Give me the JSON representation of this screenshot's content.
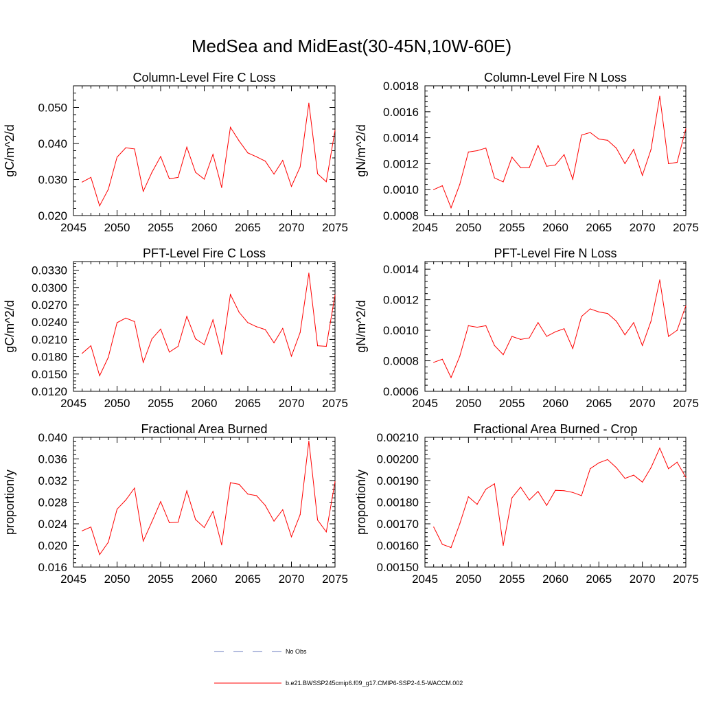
{
  "title": "MedSea and MidEast(30-45N,10W-60E)",
  "colors": {
    "series": "#ff0000",
    "obs": "#6a7bbf",
    "axis": "#000000"
  },
  "legend": {
    "obs_label": "No Obs",
    "series_label": "b.e21.BWSSP245cmip6.f09_g17.CMIP6-SSP2-4.5-WACCM.002"
  },
  "chart_data": [
    {
      "type": "line",
      "title": "Column-Level Fire C Loss",
      "ylabel": "gC/m^2/d",
      "xlim": [
        2045,
        2075
      ],
      "ylim": [
        0.02,
        0.056
      ],
      "xticks": [
        2045,
        2050,
        2055,
        2060,
        2065,
        2070,
        2075
      ],
      "xtick_labels": [
        "2045",
        "2050",
        "2055",
        "2060",
        "2065",
        "2070",
        "2075"
      ],
      "yticks": [
        0.02,
        0.03,
        0.04,
        0.05
      ],
      "ytick_labels": [
        "0.020",
        "0.030",
        "0.040",
        "0.050"
      ],
      "x": [
        2046,
        2047,
        2048,
        2049,
        2050,
        2051,
        2052,
        2053,
        2054,
        2055,
        2056,
        2057,
        2058,
        2059,
        2060,
        2061,
        2062,
        2063,
        2064,
        2065,
        2066,
        2067,
        2068,
        2069,
        2070,
        2071,
        2072,
        2073,
        2074,
        2075
      ],
      "values": [
        0.0293,
        0.0306,
        0.0227,
        0.0273,
        0.0362,
        0.0388,
        0.0385,
        0.0267,
        0.032,
        0.0364,
        0.0302,
        0.0306,
        0.039,
        0.032,
        0.0301,
        0.037,
        0.0278,
        0.0445,
        0.0407,
        0.0374,
        0.0363,
        0.0351,
        0.0315,
        0.0353,
        0.0281,
        0.0335,
        0.0512,
        0.0316,
        0.0294,
        0.0437
      ]
    },
    {
      "type": "line",
      "title": "Column-Level Fire N Loss",
      "ylabel": "gN/m^2/d",
      "xlim": [
        2045,
        2075
      ],
      "ylim": [
        0.0008,
        0.0018
      ],
      "xticks": [
        2045,
        2050,
        2055,
        2060,
        2065,
        2070,
        2075
      ],
      "xtick_labels": [
        "2045",
        "2050",
        "2055",
        "2060",
        "2065",
        "2070",
        "2075"
      ],
      "yticks": [
        0.0008,
        0.001,
        0.0012,
        0.0014,
        0.0016,
        0.0018
      ],
      "ytick_labels": [
        "0.0008",
        "0.0010",
        "0.0012",
        "0.0014",
        "0.0016",
        "0.0018"
      ],
      "x": [
        2046,
        2047,
        2048,
        2049,
        2050,
        2051,
        2052,
        2053,
        2054,
        2055,
        2056,
        2057,
        2058,
        2059,
        2060,
        2061,
        2062,
        2063,
        2064,
        2065,
        2066,
        2067,
        2068,
        2069,
        2070,
        2071,
        2072,
        2073,
        2074,
        2075
      ],
      "values": [
        0.001,
        0.00103,
        0.00086,
        0.00104,
        0.00129,
        0.0013,
        0.00132,
        0.00109,
        0.00106,
        0.00125,
        0.00117,
        0.00117,
        0.00134,
        0.00118,
        0.00119,
        0.00127,
        0.00108,
        0.00142,
        0.00144,
        0.00139,
        0.00138,
        0.00132,
        0.0012,
        0.00131,
        0.00111,
        0.00131,
        0.00172,
        0.0012,
        0.00121,
        0.00147
      ]
    },
    {
      "type": "line",
      "title": "PFT-Level Fire C Loss",
      "ylabel": "gC/m^2/d",
      "xlim": [
        2045,
        2075
      ],
      "ylim": [
        0.012,
        0.0345
      ],
      "xticks": [
        2045,
        2050,
        2055,
        2060,
        2065,
        2070,
        2075
      ],
      "xtick_labels": [
        "2045",
        "2050",
        "2055",
        "2060",
        "2065",
        "2070",
        "2075"
      ],
      "yticks": [
        0.012,
        0.015,
        0.018,
        0.021,
        0.024,
        0.027,
        0.03,
        0.033
      ],
      "ytick_labels": [
        "0.0120",
        "0.0150",
        "0.0180",
        "0.0210",
        "0.0240",
        "0.0270",
        "0.0300",
        "0.0330"
      ],
      "x": [
        2046,
        2047,
        2048,
        2049,
        2050,
        2051,
        2052,
        2053,
        2054,
        2055,
        2056,
        2057,
        2058,
        2059,
        2060,
        2061,
        2062,
        2063,
        2064,
        2065,
        2066,
        2067,
        2068,
        2069,
        2070,
        2071,
        2072,
        2073,
        2074,
        2075
      ],
      "values": [
        0.0186,
        0.0199,
        0.0147,
        0.0179,
        0.0239,
        0.0247,
        0.0241,
        0.017,
        0.0211,
        0.0228,
        0.0188,
        0.0198,
        0.025,
        0.0211,
        0.0201,
        0.0244,
        0.0184,
        0.0288,
        0.0257,
        0.0239,
        0.0232,
        0.0227,
        0.0204,
        0.0229,
        0.0181,
        0.0222,
        0.0325,
        0.0199,
        0.0198,
        0.0287
      ]
    },
    {
      "type": "line",
      "title": "PFT-Level Fire N Loss",
      "ylabel": "gN/m^2/d",
      "xlim": [
        2045,
        2075
      ],
      "ylim": [
        0.0006,
        0.00145
      ],
      "xticks": [
        2045,
        2050,
        2055,
        2060,
        2065,
        2070,
        2075
      ],
      "xtick_labels": [
        "2045",
        "2050",
        "2055",
        "2060",
        "2065",
        "2070",
        "2075"
      ],
      "yticks": [
        0.0006,
        0.0008,
        0.001,
        0.0012,
        0.0014
      ],
      "ytick_labels": [
        "0.0006",
        "0.0008",
        "0.0010",
        "0.0012",
        "0.0014"
      ],
      "x": [
        2046,
        2047,
        2048,
        2049,
        2050,
        2051,
        2052,
        2053,
        2054,
        2055,
        2056,
        2057,
        2058,
        2059,
        2060,
        2061,
        2062,
        2063,
        2064,
        2065,
        2066,
        2067,
        2068,
        2069,
        2070,
        2071,
        2072,
        2073,
        2074,
        2075
      ],
      "values": [
        0.00079,
        0.00081,
        0.00069,
        0.00083,
        0.00103,
        0.00102,
        0.00103,
        0.0009,
        0.00084,
        0.00096,
        0.00094,
        0.00095,
        0.00105,
        0.00096,
        0.00099,
        0.00101,
        0.00088,
        0.00109,
        0.00114,
        0.00112,
        0.00111,
        0.00106,
        0.00097,
        0.00105,
        0.0009,
        0.00106,
        0.00133,
        0.00096,
        0.001,
        0.00116
      ]
    },
    {
      "type": "line",
      "title": "Fractional Area Burned",
      "ylabel": "proportion/y",
      "xlim": [
        2045,
        2075
      ],
      "ylim": [
        0.016,
        0.04
      ],
      "xticks": [
        2045,
        2050,
        2055,
        2060,
        2065,
        2070,
        2075
      ],
      "xtick_labels": [
        "2045",
        "2050",
        "2055",
        "2060",
        "2065",
        "2070",
        "2075"
      ],
      "yticks": [
        0.016,
        0.02,
        0.024,
        0.028,
        0.032,
        0.036,
        0.04
      ],
      "ytick_labels": [
        "0.016",
        "0.020",
        "0.024",
        "0.028",
        "0.032",
        "0.036",
        "0.040"
      ],
      "x": [
        2046,
        2047,
        2048,
        2049,
        2050,
        2051,
        2052,
        2053,
        2054,
        2055,
        2056,
        2057,
        2058,
        2059,
        2060,
        2061,
        2062,
        2063,
        2064,
        2065,
        2066,
        2067,
        2068,
        2069,
        2070,
        2071,
        2072,
        2073,
        2074,
        2075
      ],
      "values": [
        0.0227,
        0.0234,
        0.0183,
        0.0206,
        0.0267,
        0.0284,
        0.0306,
        0.0208,
        0.0244,
        0.0281,
        0.0242,
        0.0243,
        0.0301,
        0.0248,
        0.0233,
        0.0263,
        0.0201,
        0.0316,
        0.0313,
        0.0295,
        0.0292,
        0.0274,
        0.0245,
        0.0266,
        0.0216,
        0.0257,
        0.0393,
        0.0247,
        0.0225,
        0.0318
      ]
    },
    {
      "type": "line",
      "title": "Fractional Area Burned - Crop",
      "ylabel": "proportion/y",
      "xlim": [
        2045,
        2075
      ],
      "ylim": [
        0.0015,
        0.0021
      ],
      "xticks": [
        2045,
        2050,
        2055,
        2060,
        2065,
        2070,
        2075
      ],
      "xtick_labels": [
        "2045",
        "2050",
        "2055",
        "2060",
        "2065",
        "2070",
        "2075"
      ],
      "yticks": [
        0.0015,
        0.0016,
        0.0017,
        0.0018,
        0.0019,
        0.002,
        0.0021
      ],
      "ytick_labels": [
        "0.00150",
        "0.00160",
        "0.00170",
        "0.00180",
        "0.00190",
        "0.00200",
        "0.00210"
      ],
      "x": [
        2046,
        2047,
        2048,
        2049,
        2050,
        2051,
        2052,
        2053,
        2054,
        2055,
        2056,
        2057,
        2058,
        2059,
        2060,
        2061,
        2062,
        2063,
        2064,
        2065,
        2066,
        2067,
        2068,
        2069,
        2070,
        2071,
        2072,
        2073,
        2074,
        2075
      ],
      "values": [
        0.001685,
        0.001605,
        0.00159,
        0.0017,
        0.001825,
        0.00179,
        0.00186,
        0.001885,
        0.0016,
        0.00182,
        0.00187,
        0.00181,
        0.00185,
        0.001785,
        0.001855,
        0.001853,
        0.001845,
        0.00183,
        0.001955,
        0.001982,
        0.001997,
        0.00196,
        0.00191,
        0.001925,
        0.001893,
        0.00196,
        0.00205,
        0.001955,
        0.001985,
        0.001915
      ]
    }
  ]
}
